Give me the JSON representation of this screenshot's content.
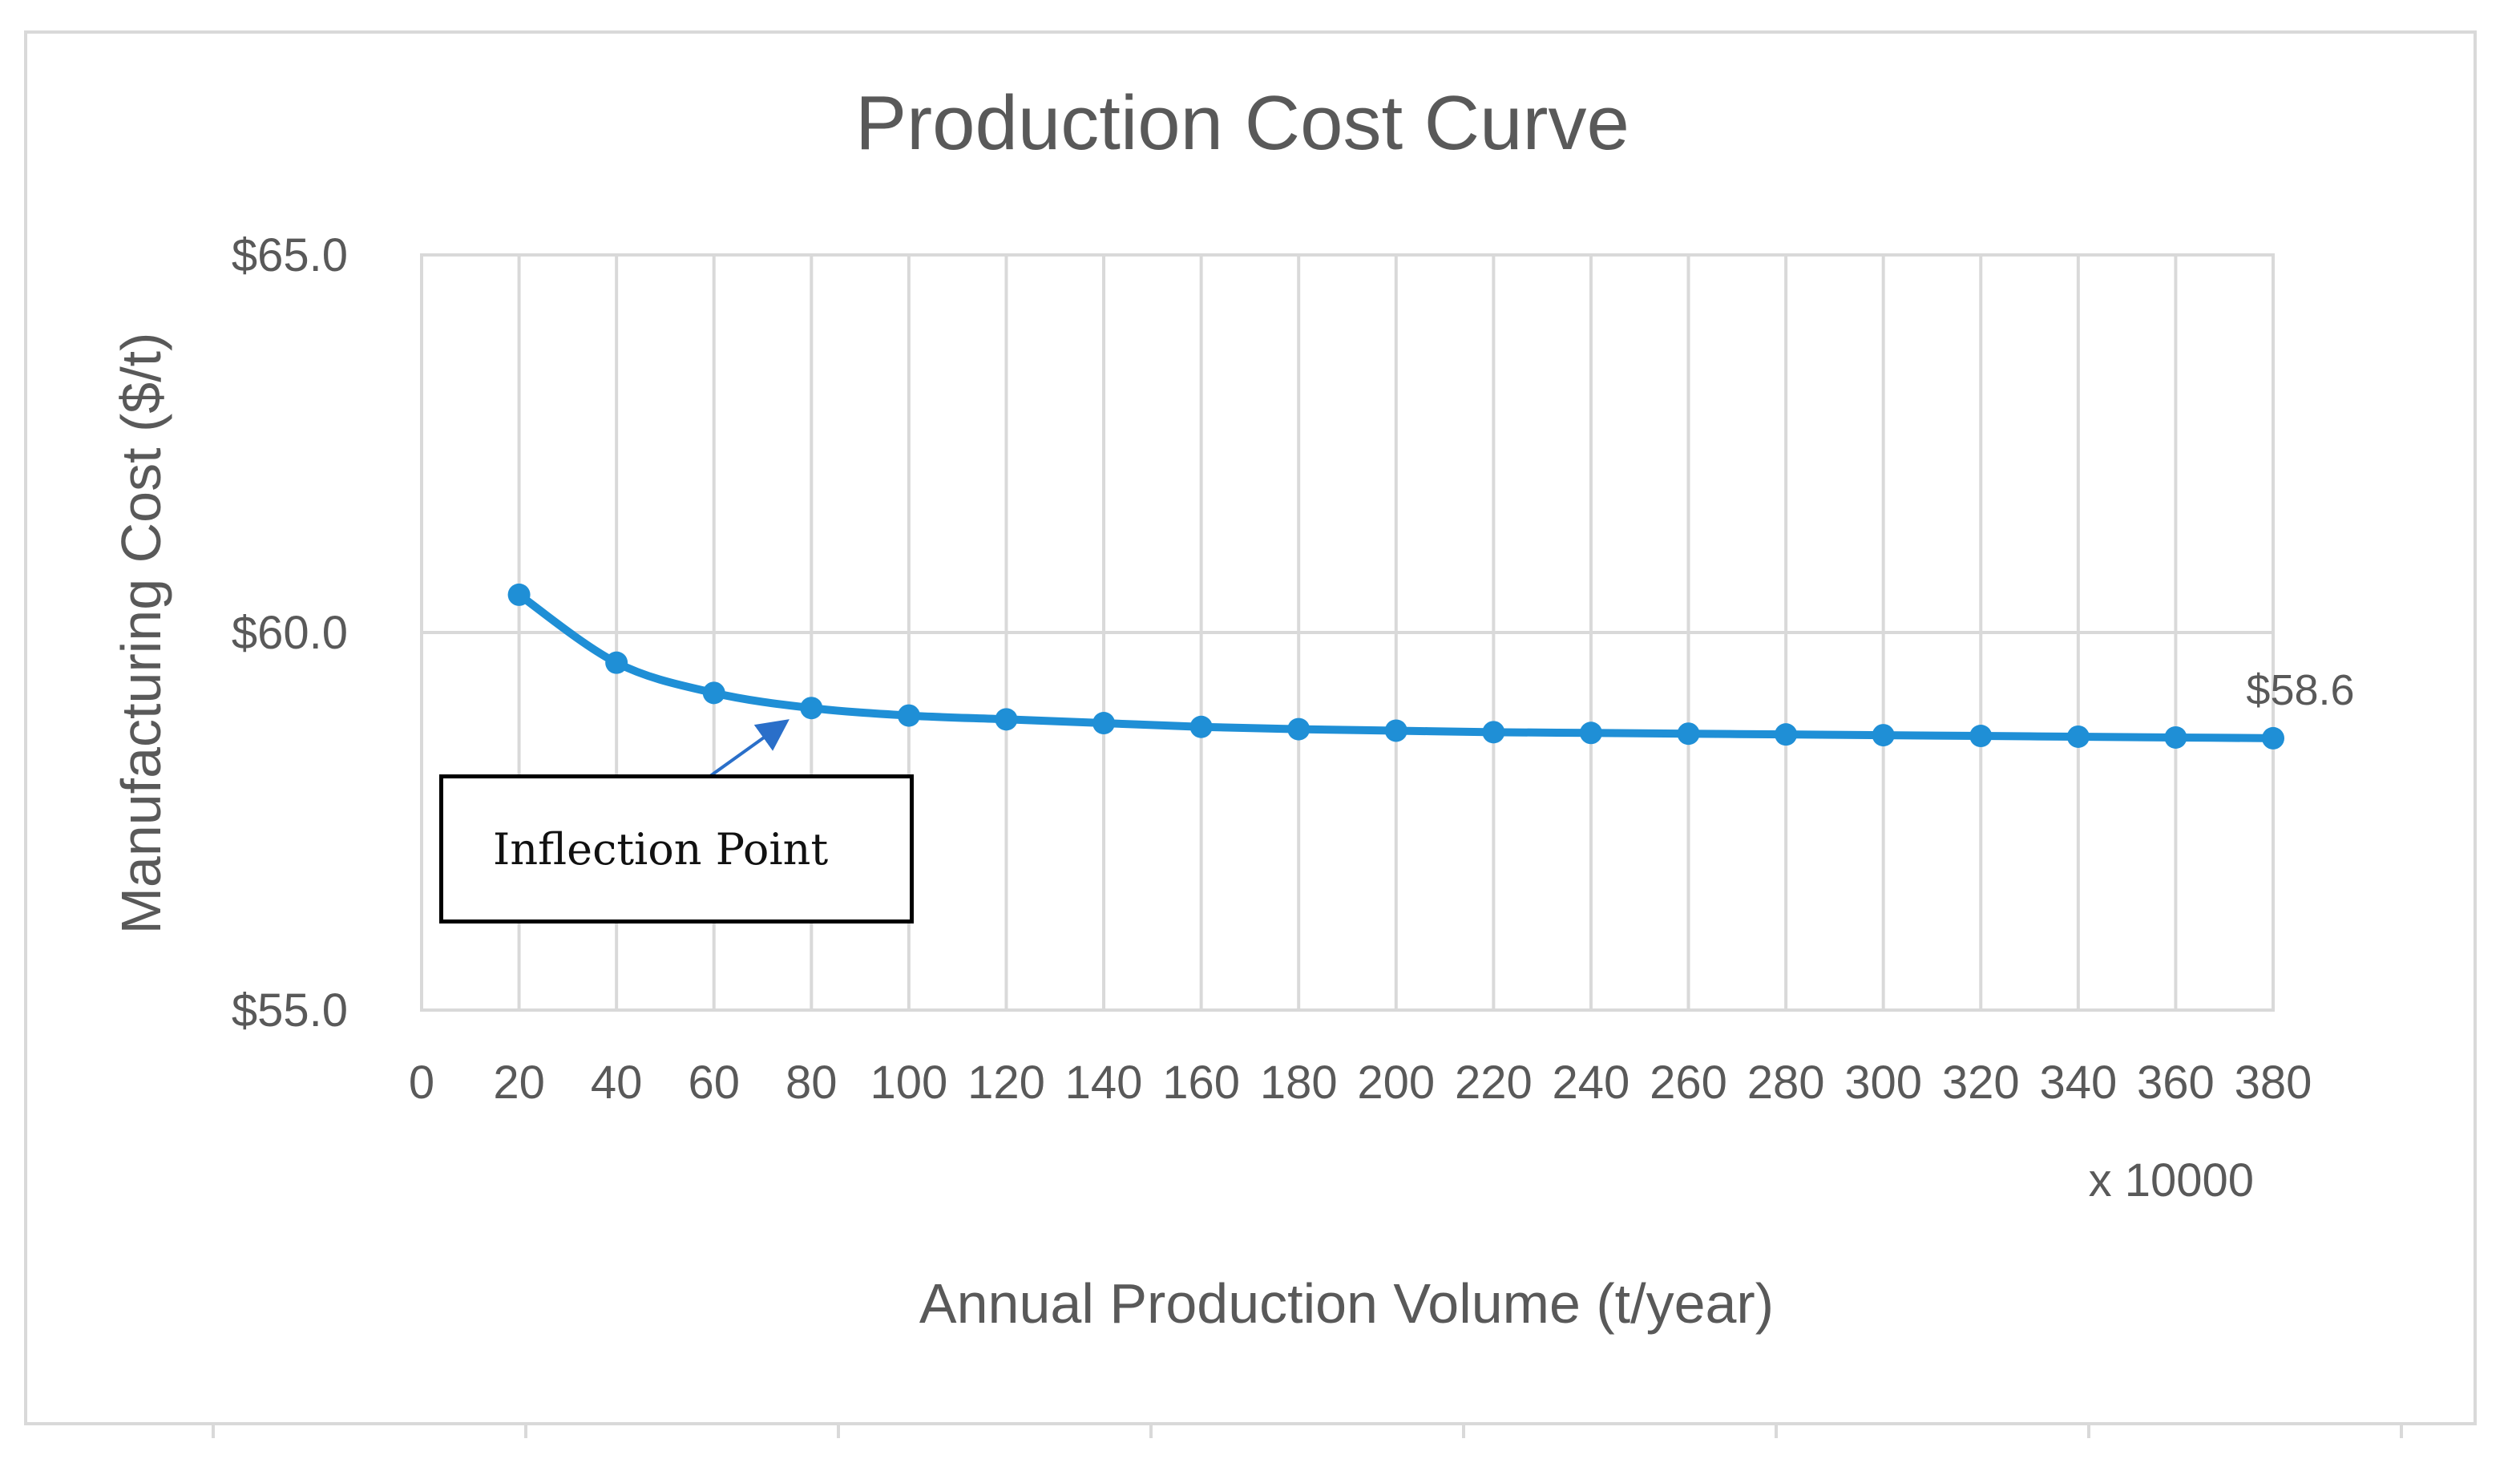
{
  "chart_data": {
    "type": "line",
    "title": "Production Cost Curve",
    "xlabel": "Annual Production Volume (t/year)",
    "x_multiplier_label": "x 10000",
    "ylabel": "Manufacturing Cost ($/t)",
    "x_ticks": [
      0,
      20,
      40,
      60,
      80,
      100,
      120,
      140,
      160,
      180,
      200,
      220,
      240,
      260,
      280,
      300,
      320,
      340,
      360,
      380
    ],
    "xlim": [
      0,
      380
    ],
    "y_ticks": [
      "$55.0",
      "$60.0",
      "$65.0"
    ],
    "y_tick_values": [
      55,
      60,
      65
    ],
    "ylim": [
      55,
      65
    ],
    "grid": true,
    "series": [
      {
        "name": "Manufacturing Cost",
        "color": "#1f8fd6",
        "x": [
          20,
          40,
          60,
          80,
          100,
          120,
          140,
          160,
          180,
          200,
          220,
          240,
          260,
          280,
          300,
          320,
          340,
          360,
          380
        ],
        "values": [
          60.5,
          59.6,
          59.2,
          59.0,
          58.9,
          58.85,
          58.8,
          58.75,
          58.72,
          58.7,
          58.68,
          58.67,
          58.66,
          58.65,
          58.64,
          58.63,
          58.62,
          58.61,
          58.6
        ]
      }
    ],
    "data_labels": [
      {
        "x": 380,
        "y": 58.6,
        "text": "$58.6"
      }
    ],
    "annotation": {
      "text": "Inflection Point",
      "target_x": 75,
      "target_y": 59.05,
      "arrow_color": "#2a6fc9"
    }
  }
}
